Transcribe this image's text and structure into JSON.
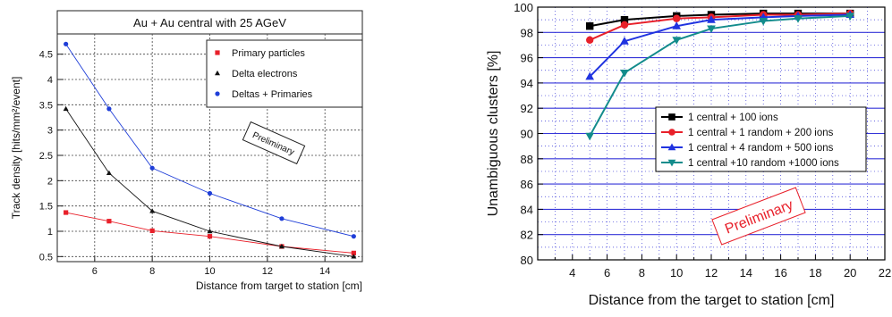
{
  "chart_data": [
    {
      "type": "line",
      "title": "Au + Au central with 25 AGeV",
      "xlabel": "Distance from target to station [cm]",
      "ylabel": "Track density [hits/mm²/event]",
      "xlim": [
        4.7,
        15.3
      ],
      "ylim": [
        0.4,
        4.9
      ],
      "xticks": [
        "6",
        "8",
        "10",
        "12",
        "14"
      ],
      "yticks": [
        "0.5",
        "1",
        "1.5",
        "2",
        "2.5",
        "3",
        "3.5",
        "4",
        "4.5"
      ],
      "grid": true,
      "legend": "top-right",
      "annotation": "Preliminary",
      "series": [
        {
          "name": "Primary particles",
          "color": "#e8202a",
          "marker": "square",
          "x": [
            5,
            6.5,
            8,
            10,
            12.5,
            15
          ],
          "y": [
            1.37,
            1.2,
            1.01,
            0.9,
            0.7,
            0.57
          ]
        },
        {
          "name": "Delta electrons",
          "color": "#111111",
          "marker": "triangle",
          "x": [
            5,
            6.5,
            8,
            10,
            12.5,
            15
          ],
          "y": [
            3.42,
            2.15,
            1.4,
            1.0,
            0.7,
            0.5
          ]
        },
        {
          "name": "Deltas + Primaries",
          "color": "#1f3ed8",
          "marker": "circle",
          "x": [
            5,
            6.5,
            8,
            10,
            12.5,
            15
          ],
          "y": [
            4.7,
            3.42,
            2.25,
            1.75,
            1.25,
            0.9
          ]
        }
      ]
    },
    {
      "type": "line",
      "title": "",
      "xlabel": "Distance from the target to station [cm]",
      "ylabel": "Unambiguous clusters [%]",
      "xlim": [
        2,
        22
      ],
      "ylim": [
        80,
        100
      ],
      "xticks": [
        "4",
        "6",
        "8",
        "10",
        "12",
        "14",
        "16",
        "18",
        "20",
        "22"
      ],
      "yticks": [
        "80",
        "82",
        "84",
        "86",
        "88",
        "90",
        "92",
        "94",
        "96",
        "98",
        "100"
      ],
      "grid": true,
      "legend": "center-right",
      "annotation": "Preliminary",
      "series": [
        {
          "name": "1 central + 100 ions",
          "color": "#000000",
          "marker": "square",
          "x": [
            5,
            7,
            10,
            12,
            15,
            17,
            20
          ],
          "y": [
            98.5,
            99.0,
            99.3,
            99.4,
            99.5,
            99.5,
            99.5
          ]
        },
        {
          "name": "1 central +  1 random +  200 ions",
          "color": "#e8202a",
          "marker": "circle",
          "x": [
            5,
            7,
            10,
            12,
            15,
            17,
            20
          ],
          "y": [
            97.4,
            98.6,
            99.1,
            99.2,
            99.4,
            99.4,
            99.5
          ]
        },
        {
          "name": "1 central +  4 random +  500 ions",
          "color": "#2033e0",
          "marker": "triangle",
          "x": [
            5,
            7,
            10,
            12,
            15,
            17,
            20
          ],
          "y": [
            94.5,
            97.3,
            98.5,
            99.0,
            99.2,
            99.3,
            99.4
          ]
        },
        {
          "name": "1 central +10 random +1000 ions",
          "color": "#138c8c",
          "marker": "triangle-down",
          "x": [
            5,
            7,
            10,
            12,
            15,
            17,
            20
          ],
          "y": [
            89.8,
            94.8,
            97.4,
            98.3,
            98.9,
            99.1,
            99.3
          ]
        }
      ]
    }
  ]
}
